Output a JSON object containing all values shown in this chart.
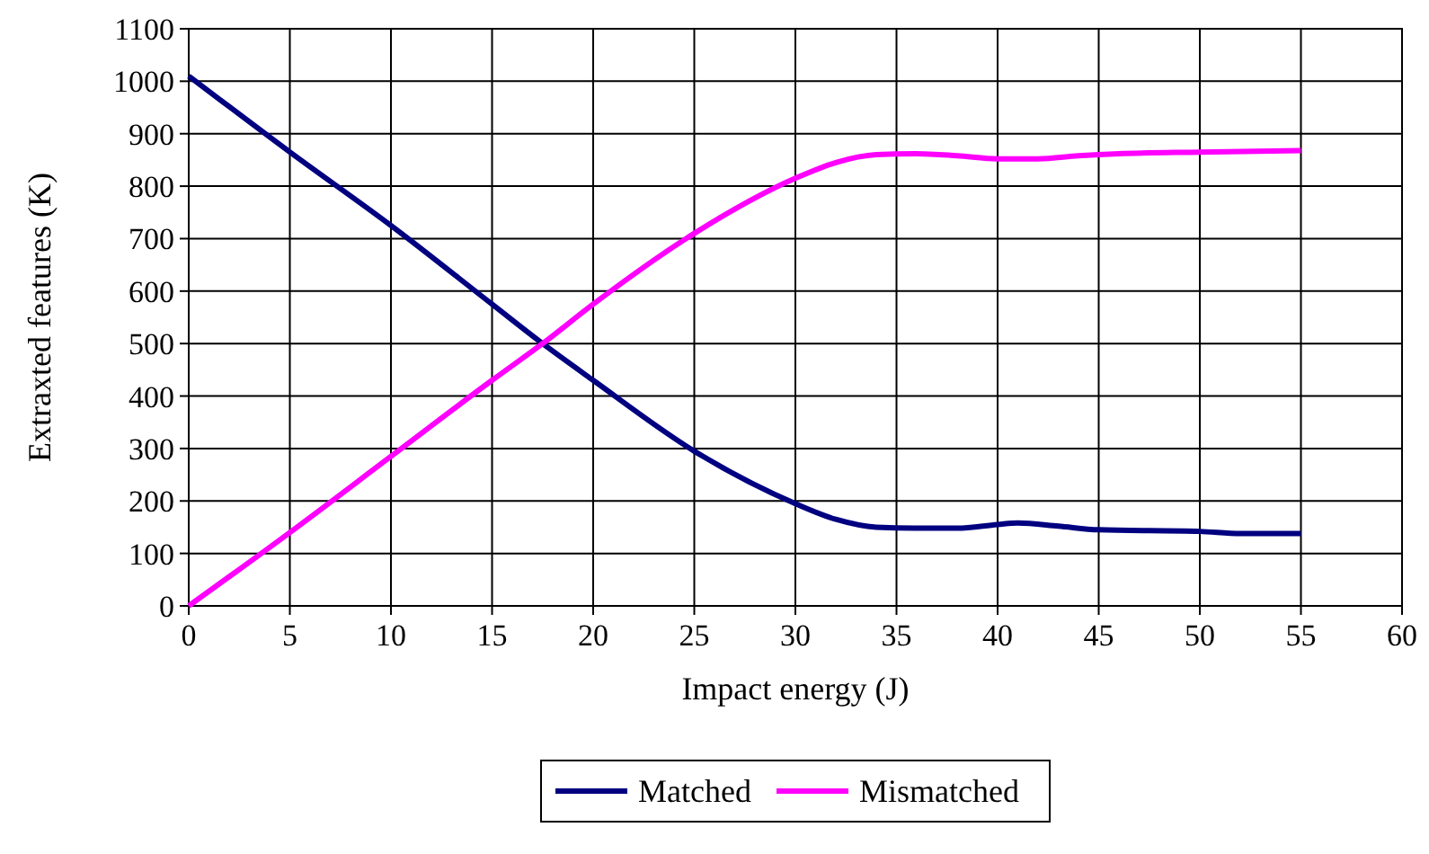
{
  "chart_data": {
    "type": "line",
    "xlabel": "Impact energy (J)",
    "ylabel": "Extraxted features (K)",
    "xlim": [
      0,
      60
    ],
    "xticks": [
      0,
      5,
      10,
      15,
      20,
      25,
      30,
      35,
      40,
      45,
      50,
      55,
      60
    ],
    "ylim": [
      0,
      1100
    ],
    "yticks": [
      0,
      100,
      200,
      300,
      400,
      500,
      600,
      700,
      800,
      900,
      1000,
      1100
    ],
    "grid": true,
    "legend": "bottom",
    "marker": "none",
    "line_style": "solid",
    "series": [
      {
        "name": "Matched",
        "color": "#000080",
        "x": [
          0,
          5,
          10,
          15,
          17.5,
          20,
          25,
          30,
          32,
          34,
          36,
          38,
          40,
          41,
          43,
          45,
          50,
          52,
          55
        ],
        "values": [
          1010,
          865,
          725,
          575,
          500,
          430,
          295,
          195,
          165,
          150,
          148,
          148,
          155,
          158,
          152,
          145,
          142,
          138,
          138
        ]
      },
      {
        "name": "Mismatched",
        "color": "#ff00ff",
        "x": [
          0,
          5,
          10,
          15,
          17.5,
          20,
          25,
          30,
          32,
          34,
          36,
          38,
          40,
          42,
          44,
          46,
          50,
          55
        ],
        "values": [
          0,
          140,
          285,
          430,
          500,
          575,
          710,
          815,
          845,
          860,
          862,
          858,
          852,
          852,
          858,
          862,
          865,
          868
        ]
      }
    ]
  }
}
